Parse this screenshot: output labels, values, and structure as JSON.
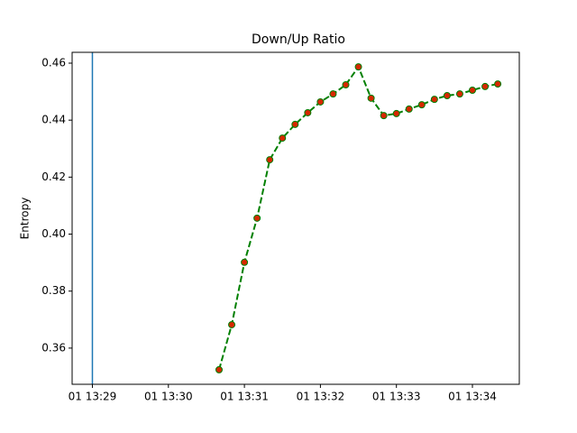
{
  "chart_data": {
    "type": "line",
    "title": "Down/Up Ratio",
    "ylabel": "Entropy",
    "x": [
      "01 13:30:40",
      "01 13:30:50",
      "01 13:31:00",
      "01 13:31:10",
      "01 13:31:20",
      "01 13:31:30",
      "01 13:31:40",
      "01 13:31:50",
      "01 13:32:00",
      "01 13:32:10",
      "01 13:32:20",
      "01 13:32:30",
      "01 13:32:40",
      "01 13:32:50",
      "01 13:33:00",
      "01 13:33:10",
      "01 13:33:20",
      "01 13:33:30",
      "01 13:33:40",
      "01 13:33:50",
      "01 13:34:00",
      "01 13:34:10",
      "01 13:34:20"
    ],
    "series": [
      {
        "color": "#008000",
        "marker_color": "#d62800",
        "values": [
          0.3524,
          0.3682,
          0.3901,
          0.4056,
          0.4261,
          0.4337,
          0.4385,
          0.4426,
          0.4464,
          0.4492,
          0.4524,
          0.4587,
          0.4477,
          0.4416,
          0.4423,
          0.4439,
          0.4454,
          0.4473,
          0.4486,
          0.4492,
          0.4505,
          0.4518,
          0.4527
        ]
      }
    ],
    "vline": {
      "x": "01 13:29",
      "color": "#1f77b4"
    },
    "xlim": [
      "01 13:28:44",
      "01 13:34:37"
    ],
    "xticks": [
      "01 13:29",
      "01 13:30",
      "01 13:31",
      "01 13:32",
      "01 13:33",
      "01 13:34"
    ],
    "ylim": [
      0.3473,
      0.4638
    ],
    "yticks": [
      0.36,
      0.38,
      {
        "value": 0.4,
        "label": "0.40"
      },
      0.42,
      0.44,
      0.46
    ]
  }
}
